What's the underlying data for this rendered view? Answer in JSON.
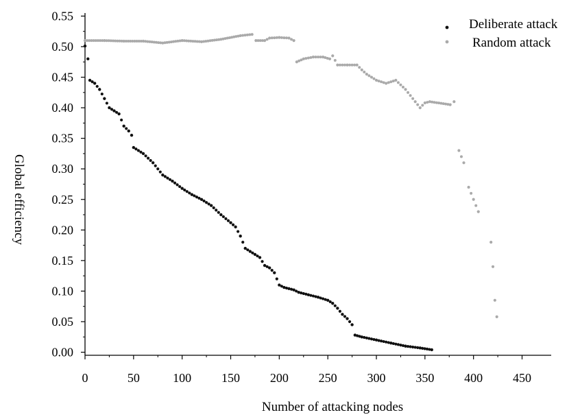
{
  "chart_data": {
    "type": "scatter",
    "title": "",
    "xlabel": "Number of attacking nodes",
    "ylabel": "Global efficiency",
    "xlim": [
      0,
      480
    ],
    "ylim": [
      -0.005,
      0.555
    ],
    "xticks": [
      0,
      50,
      100,
      150,
      200,
      250,
      300,
      350,
      400,
      450
    ],
    "xtick_labels": [
      "0",
      "50",
      "100",
      "150",
      "200",
      "250",
      "300",
      "350",
      "400",
      "450"
    ],
    "yticks": [
      0.0,
      0.05,
      0.1,
      0.15,
      0.2,
      0.25,
      0.3,
      0.35,
      0.4,
      0.45,
      0.5,
      0.55
    ],
    "ytick_labels": [
      "0.00",
      "0.05",
      "0.10",
      "0.15",
      "0.20",
      "0.25",
      "0.30",
      "0.35",
      "0.40",
      "0.45",
      "0.50",
      "0.55"
    ],
    "grid": false,
    "legend_position": "top-right",
    "series": [
      {
        "name": "Deliberate attack",
        "color": "#111111",
        "points": [
          [
            0,
            0.501
          ],
          [
            3,
            0.48
          ],
          [
            5,
            0.445
          ],
          [
            10,
            0.44
          ],
          [
            15,
            0.43
          ],
          [
            20,
            0.415
          ],
          [
            25,
            0.4
          ],
          [
            30,
            0.395
          ],
          [
            35,
            0.39
          ],
          [
            40,
            0.37
          ],
          [
            45,
            0.362
          ],
          [
            48,
            0.355
          ],
          [
            50,
            0.335
          ],
          [
            60,
            0.325
          ],
          [
            70,
            0.31
          ],
          [
            80,
            0.29
          ],
          [
            90,
            0.28
          ],
          [
            100,
            0.268
          ],
          [
            110,
            0.258
          ],
          [
            120,
            0.25
          ],
          [
            130,
            0.24
          ],
          [
            140,
            0.225
          ],
          [
            150,
            0.212
          ],
          [
            155,
            0.205
          ],
          [
            160,
            0.19
          ],
          [
            165,
            0.17
          ],
          [
            170,
            0.165
          ],
          [
            175,
            0.16
          ],
          [
            180,
            0.155
          ],
          [
            185,
            0.142
          ],
          [
            190,
            0.138
          ],
          [
            195,
            0.13
          ],
          [
            200,
            0.11
          ],
          [
            205,
            0.106
          ],
          [
            210,
            0.104
          ],
          [
            215,
            0.102
          ],
          [
            220,
            0.098
          ],
          [
            230,
            0.094
          ],
          [
            240,
            0.09
          ],
          [
            250,
            0.085
          ],
          [
            255,
            0.08
          ],
          [
            260,
            0.072
          ],
          [
            265,
            0.062
          ],
          [
            270,
            0.055
          ],
          [
            275,
            0.045
          ],
          [
            278,
            0.028
          ],
          [
            285,
            0.025
          ],
          [
            300,
            0.02
          ],
          [
            315,
            0.015
          ],
          [
            330,
            0.01
          ],
          [
            345,
            0.007
          ],
          [
            357,
            0.004
          ]
        ]
      },
      {
        "name": "Random attack",
        "color": "#aaaaaa",
        "points": [
          [
            0,
            0.51
          ],
          [
            20,
            0.51
          ],
          [
            40,
            0.509
          ],
          [
            60,
            0.509
          ],
          [
            80,
            0.506
          ],
          [
            100,
            0.51
          ],
          [
            120,
            0.508
          ],
          [
            140,
            0.512
          ],
          [
            160,
            0.518
          ],
          [
            172,
            0.52
          ],
          [
            176,
            0.51
          ],
          [
            185,
            0.51
          ],
          [
            190,
            0.514
          ],
          [
            200,
            0.515
          ],
          [
            210,
            0.514
          ],
          [
            215,
            0.51
          ],
          [
            218,
            0.475
          ],
          [
            225,
            0.48
          ],
          [
            235,
            0.483
          ],
          [
            245,
            0.483
          ],
          [
            252,
            0.48
          ],
          [
            255,
            0.485
          ],
          [
            260,
            0.47
          ],
          [
            270,
            0.47
          ],
          [
            280,
            0.47
          ],
          [
            285,
            0.462
          ],
          [
            290,
            0.455
          ],
          [
            295,
            0.45
          ],
          [
            300,
            0.445
          ],
          [
            310,
            0.44
          ],
          [
            320,
            0.445
          ],
          [
            330,
            0.43
          ],
          [
            340,
            0.41
          ],
          [
            345,
            0.4
          ],
          [
            350,
            0.408
          ],
          [
            355,
            0.41
          ],
          [
            376,
            0.405
          ],
          [
            380,
            0.41
          ],
          [
            385,
            0.33
          ],
          [
            390,
            0.31
          ],
          [
            395,
            0.27
          ],
          [
            400,
            0.25
          ],
          [
            405,
            0.23
          ],
          [
            418,
            0.18
          ],
          [
            420,
            0.14
          ],
          [
            422,
            0.085
          ],
          [
            424,
            0.058
          ]
        ]
      }
    ]
  }
}
